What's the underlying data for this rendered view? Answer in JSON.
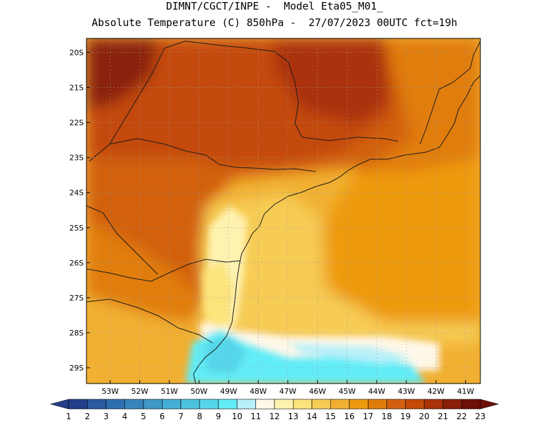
{
  "title": {
    "line1": "DIMNT/CGCT/INPE -  Model Eta05_M01_",
    "line2": "Absolute Temperature (C) 850hPa -  27/07/2023 00UTC fct=19h"
  },
  "map": {
    "lon_range": [
      -53.8,
      -40.5
    ],
    "lat_range": [
      -29.45,
      -19.6
    ],
    "lon_ticks": [
      -53,
      -52,
      -51,
      -50,
      -49,
      -48,
      -47,
      -46,
      -45,
      -44,
      -43,
      -42,
      -41
    ],
    "lon_tick_labels": [
      "53W",
      "52W",
      "51W",
      "50W",
      "49W",
      "48W",
      "47W",
      "46W",
      "45W",
      "44W",
      "43W",
      "42W",
      "41W"
    ],
    "lat_ticks": [
      -20,
      -21,
      -22,
      -23,
      -24,
      -25,
      -26,
      -27,
      -28,
      -29
    ],
    "lat_tick_labels": [
      "20S",
      "21S",
      "22S",
      "23S",
      "24S",
      "25S",
      "26S",
      "27S",
      "28S",
      "29S"
    ],
    "grid": "dotted"
  },
  "colorbar": {
    "labels": [
      "1",
      "2",
      "3",
      "4",
      "5",
      "6",
      "7",
      "8",
      "9",
      "10",
      "11",
      "12",
      "13",
      "14",
      "15",
      "16",
      "17",
      "18",
      "19",
      "20",
      "21",
      "22",
      "23"
    ],
    "colors": [
      "#233f8a",
      "#2a5aa0",
      "#2f6fb0",
      "#3a84bc",
      "#3f98c8",
      "#45aed4",
      "#4dc2de",
      "#55d6ea",
      "#62ecf7",
      "#b8f0f8",
      "#fff8e8",
      "#fff2b0",
      "#fce37a",
      "#f6cc55",
      "#f1b032",
      "#ee9a10",
      "#e07d0a",
      "#d26010",
      "#c44a08",
      "#aa3208",
      "#8a2008",
      "#6e1008"
    ]
  },
  "colors": {
    "coast": "#1a1a1a",
    "grid": "#999999"
  }
}
